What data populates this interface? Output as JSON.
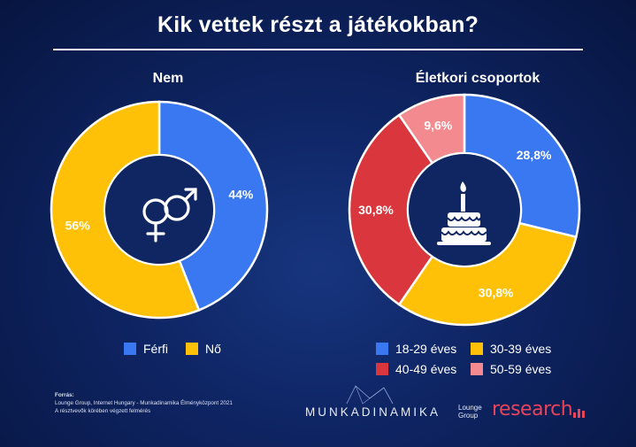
{
  "title": "Kik vettek részt a játékokban?",
  "chart_data": [
    {
      "type": "pie",
      "title": "Nem",
      "categories": [
        "Férfi",
        "Nő"
      ],
      "values": [
        44,
        56
      ],
      "labels": [
        "44%",
        "56%"
      ],
      "colors": [
        "#3a78f2",
        "#ffc108"
      ],
      "center_icon": "gender-icon",
      "legend": "bottom"
    },
    {
      "type": "pie",
      "title": "Életkori csoportok",
      "categories": [
        "18-29 éves",
        "30-39 éves",
        "40-49 éves",
        "50-59 éves"
      ],
      "values": [
        28.8,
        30.8,
        30.8,
        9.6
      ],
      "labels": [
        "28,8%",
        "30,8%",
        "30,8%",
        "9,6%"
      ],
      "colors": [
        "#3a78f2",
        "#ffc108",
        "#d9363e",
        "#f28a8f"
      ],
      "center_icon": "birthday-cake-icon",
      "legend": "bottom"
    }
  ],
  "footer": {
    "source_label": "Forrás:",
    "source_text": "Lounge Group, Internet Hungary - Munkadinamika Élményközpont 2021",
    "source_note": "A résztvevők körében végzett felmérés"
  },
  "brands": {
    "munkadinamika": "MUNKADINAMIKA",
    "lounge_line1": "Lounge",
    "lounge_line2": "Group",
    "research": "research"
  }
}
